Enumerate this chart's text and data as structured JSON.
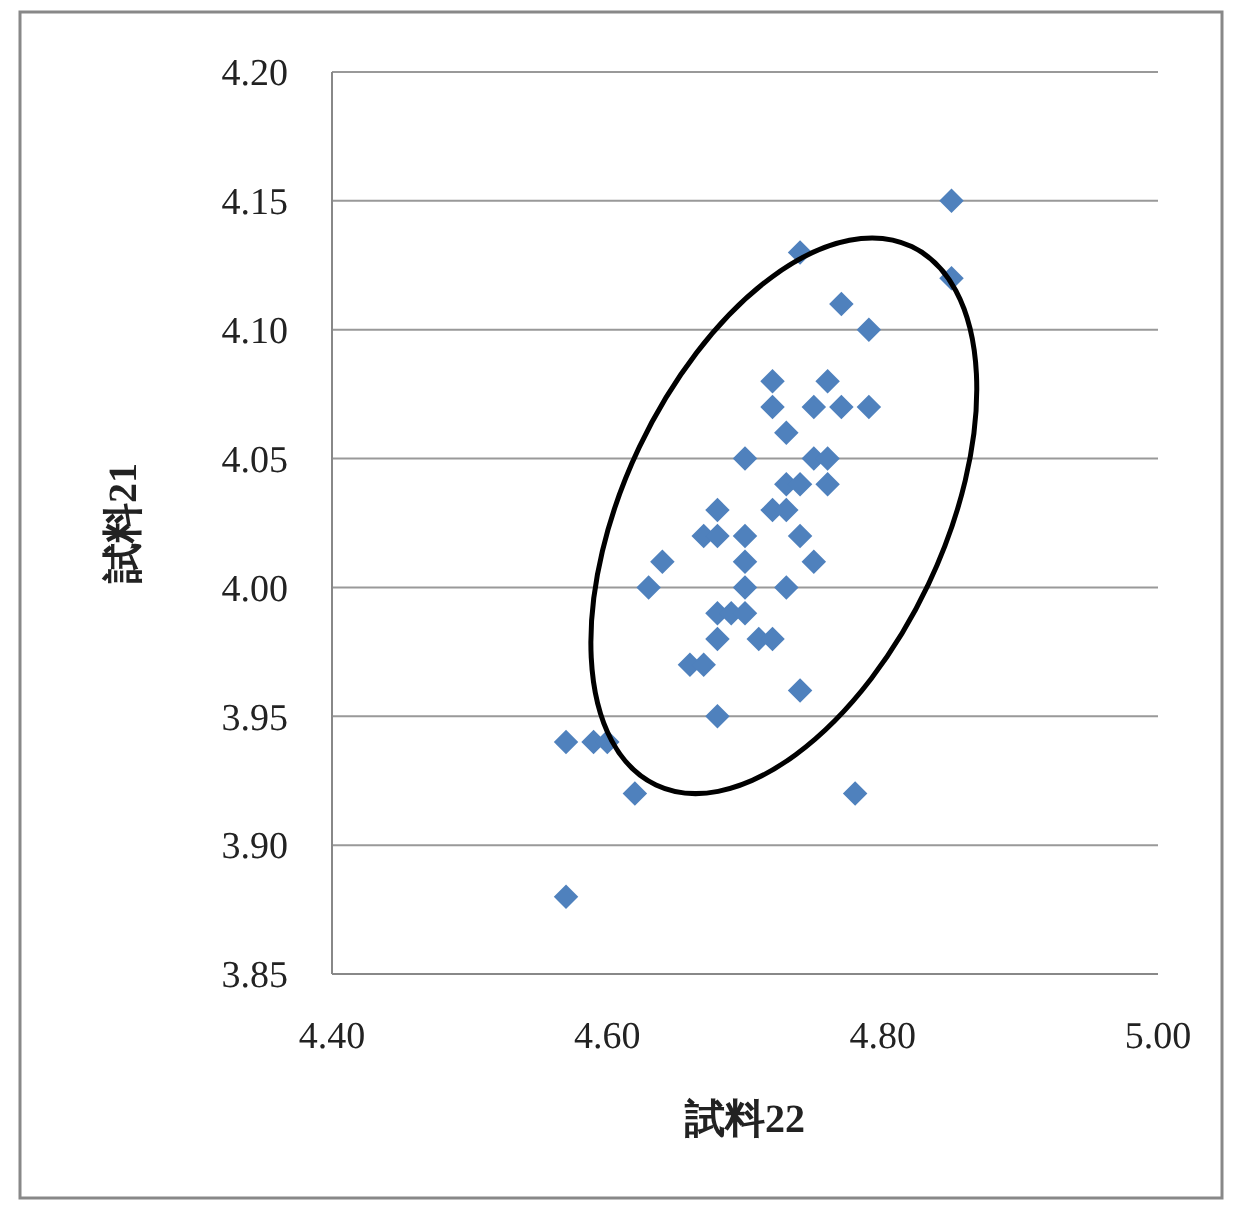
{
  "chart_data": {
    "type": "scatter",
    "xlabel": "試料22",
    "ylabel": "試料21",
    "xlim": [
      4.4,
      5.0
    ],
    "ylim": [
      3.85,
      4.2
    ],
    "xticks": [
      {
        "value": 4.4,
        "label": "4.40"
      },
      {
        "value": 4.6,
        "label": "4.60"
      },
      {
        "value": 4.8,
        "label": "4.80"
      },
      {
        "value": 5.0,
        "label": "5.00"
      }
    ],
    "yticks": [
      {
        "value": 3.85,
        "label": "3.85"
      },
      {
        "value": 3.9,
        "label": "3.90"
      },
      {
        "value": 3.95,
        "label": "3.95"
      },
      {
        "value": 4.0,
        "label": "4.00"
      },
      {
        "value": 4.05,
        "label": "4.05"
      },
      {
        "value": 4.1,
        "label": "4.10"
      },
      {
        "value": 4.15,
        "label": "4.15"
      },
      {
        "value": 4.2,
        "label": "4.20"
      }
    ],
    "grid": "y",
    "marker": "diamond",
    "series": [
      {
        "color": "#4f81bd",
        "x": [
          4.85,
          4.74,
          4.85,
          4.77,
          4.79,
          4.72,
          4.76,
          4.72,
          4.75,
          4.77,
          4.79,
          4.73,
          4.7,
          4.75,
          4.76,
          4.73,
          4.74,
          4.76,
          4.72,
          4.73,
          4.68,
          4.67,
          4.68,
          4.7,
          4.74,
          4.64,
          4.7,
          4.75,
          4.63,
          4.7,
          4.73,
          4.68,
          4.69,
          4.7,
          4.68,
          4.71,
          4.72,
          4.66,
          4.67,
          4.74,
          4.68,
          4.57,
          4.59,
          4.6,
          4.62,
          4.78,
          4.57
        ],
        "values": [
          4.15,
          4.13,
          4.12,
          4.11,
          4.1,
          4.08,
          4.08,
          4.07,
          4.07,
          4.07,
          4.07,
          4.06,
          4.05,
          4.05,
          4.05,
          4.04,
          4.04,
          4.04,
          4.03,
          4.03,
          4.03,
          4.02,
          4.02,
          4.02,
          4.02,
          4.01,
          4.01,
          4.01,
          4.0,
          4.0,
          4.0,
          3.99,
          3.99,
          3.99,
          3.98,
          3.98,
          3.98,
          3.97,
          3.97,
          3.96,
          3.95,
          3.94,
          3.94,
          3.94,
          3.92,
          3.92,
          3.88
        ]
      }
    ]
  }
}
